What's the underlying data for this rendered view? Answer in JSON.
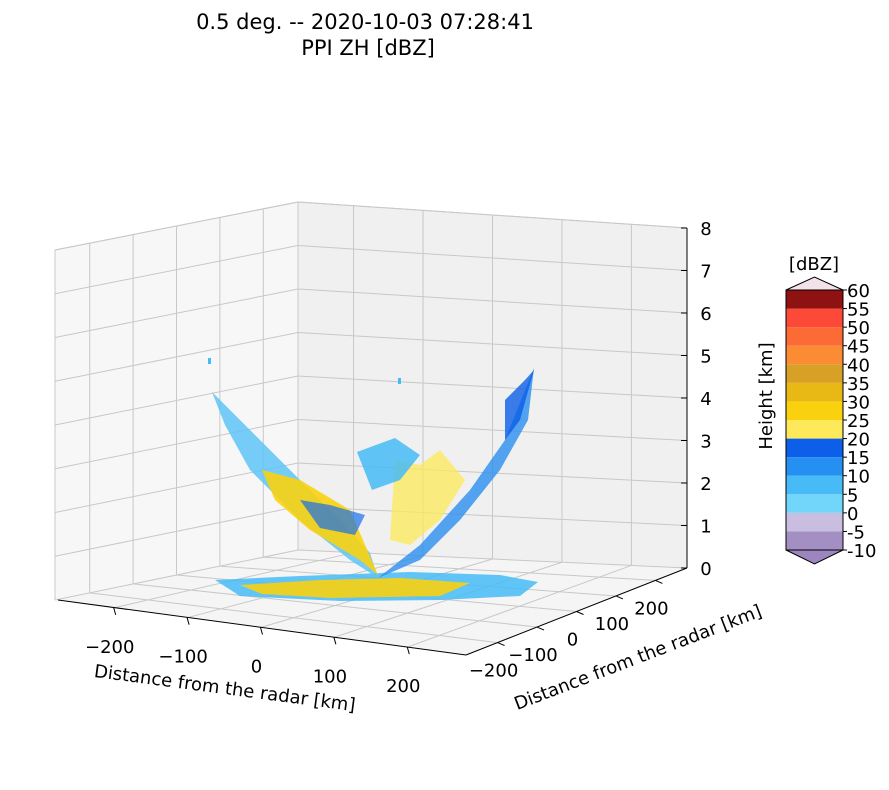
{
  "chart_data": {
    "type": "surface3d",
    "title": "0.5 deg. -- 2020-10-03 07:28:41",
    "subtitle": "PPI ZH [dBZ]",
    "xlabel": "Distance from the radar [km]",
    "ylabel": "Distance from the radar [km]",
    "zlabel": "Height [km]",
    "x_ticks": [
      "−200",
      "−100",
      "0",
      "100",
      "200"
    ],
    "y_ticks": [
      "−200",
      "−100",
      "0",
      "100",
      "200"
    ],
    "z_ticks": [
      "0",
      "1",
      "2",
      "3",
      "4",
      "5",
      "6",
      "7",
      "8"
    ],
    "xlim": [
      -280,
      280
    ],
    "ylim": [
      -280,
      280
    ],
    "zlim": [
      0,
      8
    ],
    "elevation_deg": 0.5,
    "colorbar": {
      "label": "[dBZ]",
      "levels": [
        -10,
        -5,
        0,
        5,
        10,
        15,
        20,
        25,
        30,
        35,
        40,
        45,
        50,
        55,
        60
      ],
      "tick_labels": [
        "60",
        "55",
        "50",
        "45",
        "40",
        "35",
        "30",
        "25",
        "20",
        "15",
        "10",
        "5",
        "0",
        "-5",
        "-10"
      ],
      "colors": [
        "#a38fc4",
        "#c9bde0",
        "#72d6fb",
        "#46bbf6",
        "#2590f2",
        "#0d5ee8",
        "#fde95a",
        "#f9d10f",
        "#e8b815",
        "#d8a126",
        "#fb8c33",
        "#fc6a35",
        "#fd4a38",
        "#8f1212"
      ],
      "over_color": "#f2e3ea",
      "under_color": "#9d86c0"
    }
  }
}
